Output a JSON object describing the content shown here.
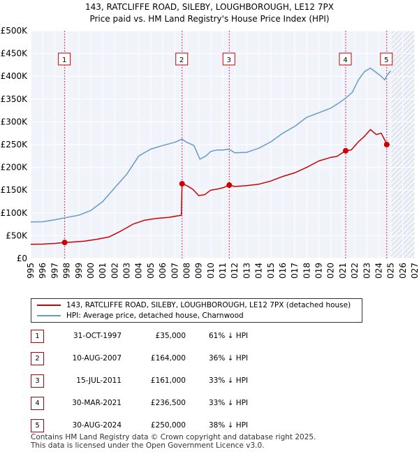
{
  "title_line1": "143, RATCLIFFE ROAD, SILEBY, LOUGHBOROUGH, LE12 7PX",
  "title_line2": "Price paid vs. HM Land Registry's House Price Index (HPI)",
  "colors": {
    "property_line": "#cc0000",
    "hpi_line": "#6699cc",
    "marker_line": "#cc3366",
    "plot_bg": "#f0f4fa",
    "grid": "#ffffff"
  },
  "chart_data": {
    "type": "line",
    "xlim": [
      1995,
      2027
    ],
    "ylim": [
      0,
      500000
    ],
    "x_ticks": [
      "1995",
      "1996",
      "1997",
      "1998",
      "1999",
      "2000",
      "2001",
      "2002",
      "2003",
      "2004",
      "2005",
      "2006",
      "2007",
      "2008",
      "2009",
      "2010",
      "2011",
      "2012",
      "2013",
      "2014",
      "2015",
      "2016",
      "2017",
      "2018",
      "2019",
      "2020",
      "2021",
      "2022",
      "2023",
      "2024",
      "2025",
      "2026",
      "2027"
    ],
    "y_ticks": [
      {
        "value": 0,
        "label": "£0"
      },
      {
        "value": 50000,
        "label": "£50K"
      },
      {
        "value": 100000,
        "label": "£100K"
      },
      {
        "value": 150000,
        "label": "£150K"
      },
      {
        "value": 200000,
        "label": "£200K"
      },
      {
        "value": 250000,
        "label": "£250K"
      },
      {
        "value": 300000,
        "label": "£300K"
      },
      {
        "value": 350000,
        "label": "£350K"
      },
      {
        "value": 400000,
        "label": "£400K"
      },
      {
        "value": 450000,
        "label": "£450K"
      },
      {
        "value": 500000,
        "label": "£500K"
      }
    ],
    "hatch_from": 2025.0,
    "series": [
      {
        "name": "143, RATCLIFFE ROAD, SILEBY, LOUGHBOROUGH, LE12 7PX (detached house)",
        "color": "#cc0000",
        "points": [
          [
            1995.0,
            31000
          ],
          [
            1996.0,
            31500
          ],
          [
            1997.0,
            33000
          ],
          [
            1997.83,
            35000
          ],
          [
            1998.5,
            36000
          ],
          [
            1999.5,
            38000
          ],
          [
            2000.5,
            42000
          ],
          [
            2001.5,
            47000
          ],
          [
            2002.5,
            60000
          ],
          [
            2003.5,
            75000
          ],
          [
            2004.5,
            84000
          ],
          [
            2005.5,
            88000
          ],
          [
            2006.5,
            90000
          ],
          [
            2007.55,
            95000
          ],
          [
            2007.61,
            164000
          ],
          [
            2008.0,
            160000
          ],
          [
            2008.5,
            152000
          ],
          [
            2009.0,
            138000
          ],
          [
            2009.5,
            140000
          ],
          [
            2010.0,
            150000
          ],
          [
            2010.5,
            152000
          ],
          [
            2011.0,
            155000
          ],
          [
            2011.54,
            161000
          ],
          [
            2012.0,
            158000
          ],
          [
            2013.0,
            160000
          ],
          [
            2014.0,
            163000
          ],
          [
            2015.0,
            170000
          ],
          [
            2016.0,
            180000
          ],
          [
            2017.0,
            188000
          ],
          [
            2018.0,
            200000
          ],
          [
            2019.0,
            214000
          ],
          [
            2020.0,
            222000
          ],
          [
            2020.5,
            224000
          ],
          [
            2021.24,
            236500
          ],
          [
            2021.7,
            238000
          ],
          [
            2022.3,
            256000
          ],
          [
            2022.8,
            268000
          ],
          [
            2023.3,
            283000
          ],
          [
            2023.8,
            272000
          ],
          [
            2024.2,
            275000
          ],
          [
            2024.5,
            260000
          ],
          [
            2024.66,
            250000
          ],
          [
            2024.9,
            249000
          ]
        ]
      },
      {
        "name": "HPI: Average price, detached house, Charnwood",
        "color": "#6699cc",
        "points": [
          [
            1995.0,
            80000
          ],
          [
            1996.0,
            80500
          ],
          [
            1997.0,
            85000
          ],
          [
            1998.0,
            90000
          ],
          [
            1999.0,
            95000
          ],
          [
            2000.0,
            105000
          ],
          [
            2001.0,
            125000
          ],
          [
            2002.0,
            155000
          ],
          [
            2003.0,
            185000
          ],
          [
            2004.0,
            225000
          ],
          [
            2005.0,
            240000
          ],
          [
            2006.0,
            248000
          ],
          [
            2007.0,
            255000
          ],
          [
            2007.6,
            262000
          ],
          [
            2008.0,
            255000
          ],
          [
            2008.6,
            248000
          ],
          [
            2009.1,
            218000
          ],
          [
            2009.6,
            225000
          ],
          [
            2010.0,
            235000
          ],
          [
            2010.5,
            238000
          ],
          [
            2011.0,
            238000
          ],
          [
            2011.5,
            240000
          ],
          [
            2012.0,
            232000
          ],
          [
            2013.0,
            233000
          ],
          [
            2014.0,
            242000
          ],
          [
            2015.0,
            256000
          ],
          [
            2016.0,
            275000
          ],
          [
            2017.0,
            290000
          ],
          [
            2018.0,
            310000
          ],
          [
            2019.0,
            320000
          ],
          [
            2020.0,
            330000
          ],
          [
            2020.6,
            340000
          ],
          [
            2021.24,
            352000
          ],
          [
            2021.8,
            365000
          ],
          [
            2022.3,
            392000
          ],
          [
            2022.8,
            410000
          ],
          [
            2023.3,
            418000
          ],
          [
            2023.8,
            408000
          ],
          [
            2024.2,
            400000
          ],
          [
            2024.5,
            392000
          ],
          [
            2024.66,
            401000
          ],
          [
            2025.0,
            412000
          ]
        ]
      }
    ],
    "transactions": [
      {
        "id": "1",
        "x": 1997.83,
        "y": 35000
      },
      {
        "id": "2",
        "x": 2007.61,
        "y": 164000
      },
      {
        "id": "3",
        "x": 2011.54,
        "y": 161000
      },
      {
        "id": "4",
        "x": 2021.24,
        "y": 236500
      },
      {
        "id": "5",
        "x": 2024.66,
        "y": 250000
      }
    ]
  },
  "legend": {
    "property": "143, RATCLIFFE ROAD, SILEBY, LOUGHBOROUGH, LE12 7PX (detached house)",
    "hpi": "HPI: Average price, detached house, Charnwood"
  },
  "table": [
    {
      "id": "1",
      "date": "31-OCT-1997",
      "price": "£35,000",
      "hpi": "61% ↓ HPI"
    },
    {
      "id": "2",
      "date": "10-AUG-2007",
      "price": "£164,000",
      "hpi": "36% ↓ HPI"
    },
    {
      "id": "3",
      "date": "15-JUL-2011",
      "price": "£161,000",
      "hpi": "33% ↓ HPI"
    },
    {
      "id": "4",
      "date": "30-MAR-2021",
      "price": "£236,500",
      "hpi": "33% ↓ HPI"
    },
    {
      "id": "5",
      "date": "30-AUG-2024",
      "price": "£250,000",
      "hpi": "38% ↓ HPI"
    }
  ],
  "footer": {
    "line1": "Contains HM Land Registry data © Crown copyright and database right 2025.",
    "line2": "This data is licensed under the Open Government Licence v3.0."
  }
}
